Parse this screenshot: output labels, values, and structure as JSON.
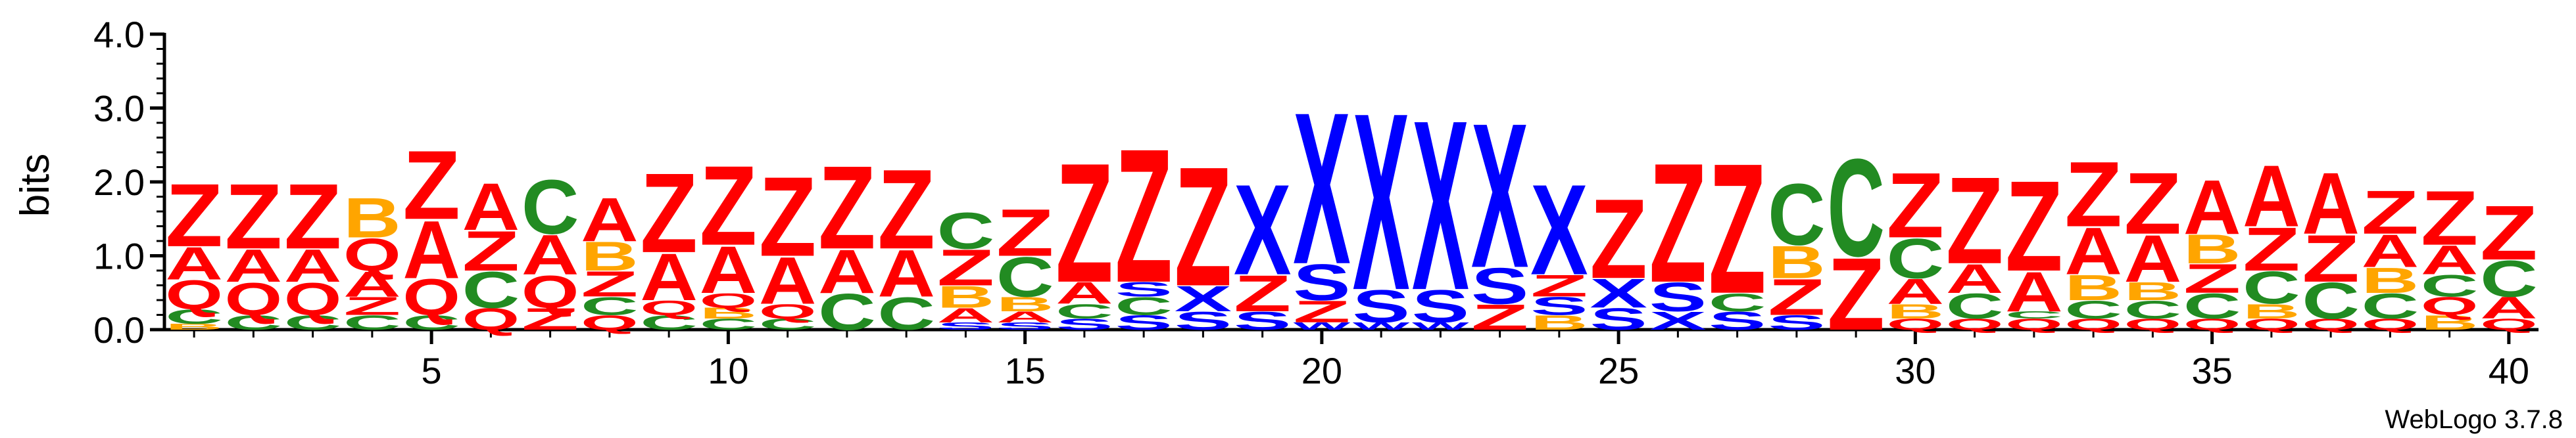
{
  "chart_data": {
    "type": "sequence-logo",
    "ylabel": "bits",
    "ylim": [
      0,
      4.0
    ],
    "y_ticks": [
      "0.0",
      "1.0",
      "2.0",
      "3.0",
      "4.0"
    ],
    "x_ticks": [
      5,
      10,
      15,
      20,
      25,
      30,
      35,
      40
    ],
    "positions": [
      1,
      40
    ],
    "footer": "WebLogo 3.7.8",
    "colors": {
      "Z": "#ff0000",
      "A": "#ff0000",
      "Q": "#ff0000",
      "C": "#228b22",
      "B": "#ffa500",
      "X": "#0000ff",
      "S": "#0000ff",
      "W": "#0000ff"
    },
    "columns": [
      {
        "pos": 1,
        "stack": [
          [
            "B",
            0.08
          ],
          [
            "C",
            0.2
          ],
          [
            "Q",
            0.4
          ],
          [
            "A",
            0.45
          ],
          [
            "Z",
            0.87
          ]
        ]
      },
      {
        "pos": 2,
        "stack": [
          [
            "C",
            0.2
          ],
          [
            "Q",
            0.45
          ],
          [
            "A",
            0.45
          ],
          [
            "Z",
            0.9
          ]
        ]
      },
      {
        "pos": 3,
        "stack": [
          [
            "C",
            0.2
          ],
          [
            "Q",
            0.45
          ],
          [
            "A",
            0.45
          ],
          [
            "Z",
            0.9
          ]
        ]
      },
      {
        "pos": 4,
        "stack": [
          [
            "C",
            0.2
          ],
          [
            "Z",
            0.25
          ],
          [
            "A",
            0.35
          ],
          [
            "Q",
            0.45
          ],
          [
            "B",
            0.55
          ]
        ]
      },
      {
        "pos": 5,
        "stack": [
          [
            "C",
            0.2
          ],
          [
            "Q",
            0.5
          ],
          [
            "A",
            0.8
          ],
          [
            "Z",
            0.95
          ]
        ]
      },
      {
        "pos": 6,
        "stack": [
          [
            "Q",
            0.3
          ],
          [
            "C",
            0.5
          ],
          [
            "Z",
            0.55
          ],
          [
            "A",
            0.65
          ]
        ]
      },
      {
        "pos": 7,
        "stack": [
          [
            "Z",
            0.3
          ],
          [
            "Q",
            0.45
          ],
          [
            "A",
            0.55
          ],
          [
            "C",
            0.75
          ]
        ]
      },
      {
        "pos": 8,
        "stack": [
          [
            "Q",
            0.2
          ],
          [
            "C",
            0.25
          ],
          [
            "Z",
            0.35
          ],
          [
            "B",
            0.4
          ],
          [
            "A",
            0.6
          ]
        ]
      },
      {
        "pos": 9,
        "stack": [
          [
            "C",
            0.2
          ],
          [
            "Q",
            0.2
          ],
          [
            "A",
            0.65
          ],
          [
            "Z",
            1.1
          ]
        ]
      },
      {
        "pos": 10,
        "stack": [
          [
            "C",
            0.15
          ],
          [
            "B",
            0.15
          ],
          [
            "Q",
            0.2
          ],
          [
            "A",
            0.65
          ],
          [
            "Z",
            1.1
          ]
        ]
      },
      {
        "pos": 11,
        "stack": [
          [
            "C",
            0.15
          ],
          [
            "Q",
            0.2
          ],
          [
            "A",
            0.65
          ],
          [
            "Z",
            1.1
          ]
        ]
      },
      {
        "pos": 12,
        "stack": [
          [
            "C",
            0.5
          ],
          [
            "A",
            0.6
          ],
          [
            "Z",
            1.15
          ]
        ]
      },
      {
        "pos": 13,
        "stack": [
          [
            "C",
            0.45
          ],
          [
            "A",
            0.65
          ],
          [
            "Z",
            1.1
          ]
        ]
      },
      {
        "pos": 14,
        "stack": [
          [
            "S",
            0.1
          ],
          [
            "A",
            0.2
          ],
          [
            "B",
            0.3
          ],
          [
            "Z",
            0.5
          ],
          [
            "C",
            0.5
          ]
        ]
      },
      {
        "pos": 15,
        "stack": [
          [
            "S",
            0.1
          ],
          [
            "A",
            0.15
          ],
          [
            "B",
            0.2
          ],
          [
            "C",
            0.55
          ],
          [
            "Z",
            0.65
          ]
        ]
      },
      {
        "pos": 16,
        "stack": [
          [
            "S",
            0.15
          ],
          [
            "C",
            0.2
          ],
          [
            "A",
            0.3
          ],
          [
            "Z",
            1.65
          ]
        ]
      },
      {
        "pos": 17,
        "stack": [
          [
            "S",
            0.2
          ],
          [
            "C",
            0.25
          ],
          [
            "S",
            0.2
          ],
          [
            "Z",
            1.85
          ]
        ]
      },
      {
        "pos": 18,
        "stack": [
          [
            "S",
            0.25
          ],
          [
            "X",
            0.35
          ],
          [
            "Z",
            1.65
          ]
        ]
      },
      {
        "pos": 19,
        "stack": [
          [
            "S",
            0.25
          ],
          [
            "Z",
            0.5
          ],
          [
            "X",
            1.25
          ]
        ]
      },
      {
        "pos": 20,
        "stack": [
          [
            "W",
            0.1
          ],
          [
            "Z",
            0.3
          ],
          [
            "S",
            0.5
          ],
          [
            "X",
            2.1
          ]
        ]
      },
      {
        "pos": 21,
        "stack": [
          [
            "W",
            0.1
          ],
          [
            "S",
            0.45
          ],
          [
            "X",
            2.45
          ]
        ]
      },
      {
        "pos": 22,
        "stack": [
          [
            "W",
            0.1
          ],
          [
            "S",
            0.45
          ],
          [
            "X",
            2.35
          ]
        ]
      },
      {
        "pos": 23,
        "stack": [
          [
            "Z",
            0.35
          ],
          [
            "S",
            0.5
          ],
          [
            "X",
            2.0
          ]
        ]
      },
      {
        "pos": 24,
        "stack": [
          [
            "B",
            0.2
          ],
          [
            "S",
            0.25
          ],
          [
            "Z",
            0.3
          ],
          [
            "X",
            1.25
          ]
        ]
      },
      {
        "pos": 25,
        "stack": [
          [
            "S",
            0.3
          ],
          [
            "X",
            0.4
          ],
          [
            "Z",
            1.1
          ]
        ]
      },
      {
        "pos": 26,
        "stack": [
          [
            "X",
            0.25
          ],
          [
            "S",
            0.4
          ],
          [
            "Z",
            1.65
          ]
        ]
      },
      {
        "pos": 27,
        "stack": [
          [
            "S",
            0.25
          ],
          [
            "C",
            0.25
          ],
          [
            "Z",
            1.8
          ]
        ]
      },
      {
        "pos": 28,
        "stack": [
          [
            "S",
            0.2
          ],
          [
            "Z",
            0.5
          ],
          [
            "B",
            0.45
          ],
          [
            "C",
            0.85
          ]
        ]
      },
      {
        "pos": 29,
        "stack": [
          [
            "Z",
            1.0
          ],
          [
            "C",
            1.35
          ]
        ]
      },
      {
        "pos": 30,
        "stack": [
          [
            "Q",
            0.15
          ],
          [
            "B",
            0.2
          ],
          [
            "A",
            0.35
          ],
          [
            "C",
            0.55
          ],
          [
            "Z",
            0.9
          ]
        ]
      },
      {
        "pos": 31,
        "stack": [
          [
            "Q",
            0.15
          ],
          [
            "C",
            0.35
          ],
          [
            "A",
            0.4
          ],
          [
            "Z",
            1.2
          ]
        ]
      },
      {
        "pos": 32,
        "stack": [
          [
            "Q",
            0.15
          ],
          [
            "C",
            0.1
          ],
          [
            "A",
            0.55
          ],
          [
            "Z",
            1.25
          ]
        ]
      },
      {
        "pos": 33,
        "stack": [
          [
            "Q",
            0.15
          ],
          [
            "C",
            0.25
          ],
          [
            "B",
            0.35
          ],
          [
            "A",
            0.65
          ],
          [
            "Z",
            0.9
          ]
        ]
      },
      {
        "pos": 34,
        "stack": [
          [
            "Q",
            0.15
          ],
          [
            "C",
            0.25
          ],
          [
            "B",
            0.25
          ],
          [
            "A",
            0.65
          ],
          [
            "Z",
            0.85
          ]
        ]
      },
      {
        "pos": 35,
        "stack": [
          [
            "Q",
            0.15
          ],
          [
            "C",
            0.35
          ],
          [
            "Z",
            0.4
          ],
          [
            "B",
            0.4
          ],
          [
            "A",
            0.75
          ]
        ]
      },
      {
        "pos": 36,
        "stack": [
          [
            "Q",
            0.15
          ],
          [
            "B",
            0.2
          ],
          [
            "C",
            0.45
          ],
          [
            "Z",
            0.6
          ],
          [
            "A",
            0.85
          ]
        ]
      },
      {
        "pos": 37,
        "stack": [
          [
            "Q",
            0.15
          ],
          [
            "C",
            0.5
          ],
          [
            "Z",
            0.65
          ],
          [
            "A",
            0.85
          ]
        ]
      },
      {
        "pos": 38,
        "stack": [
          [
            "Q",
            0.15
          ],
          [
            "C",
            0.35
          ],
          [
            "B",
            0.35
          ],
          [
            "A",
            0.45
          ],
          [
            "Z",
            0.6
          ]
        ]
      },
      {
        "pos": 39,
        "stack": [
          [
            "B",
            0.2
          ],
          [
            "Q",
            0.25
          ],
          [
            "C",
            0.3
          ],
          [
            "A",
            0.4
          ],
          [
            "Z",
            0.75
          ]
        ]
      },
      {
        "pos": 40,
        "stack": [
          [
            "Q",
            0.15
          ],
          [
            "A",
            0.3
          ],
          [
            "C",
            0.5
          ],
          [
            "Z",
            0.75
          ]
        ]
      }
    ]
  }
}
